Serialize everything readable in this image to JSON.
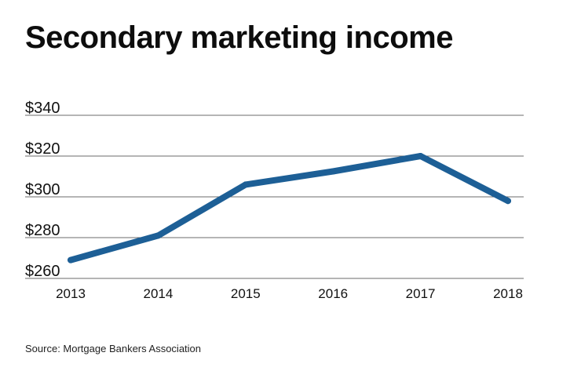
{
  "chart_data": {
    "type": "line",
    "title": "Secondary marketing income",
    "xlabel": "",
    "ylabel": "",
    "categories": [
      "2013",
      "2014",
      "2015",
      "2016",
      "2017",
      "2018"
    ],
    "series": [
      {
        "name": "Secondary marketing income",
        "color": "#1d5f96",
        "values": [
          269,
          281,
          306,
          312.5,
          320,
          298
        ]
      }
    ],
    "ylim": [
      260,
      340
    ],
    "yticks": [
      260,
      280,
      300,
      320,
      340
    ],
    "ytick_labels": [
      "$260",
      "$280",
      "$300",
      "$320",
      "$340"
    ],
    "grid": true,
    "legend": "none"
  },
  "source": "Source: Mortgage Bankers Association"
}
